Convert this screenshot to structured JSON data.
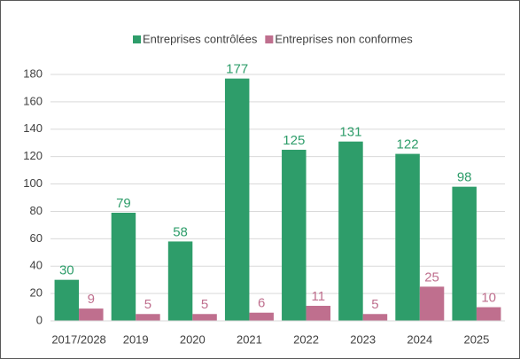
{
  "chart_data": {
    "type": "bar",
    "categories": [
      "2017/2028",
      "2019",
      "2020",
      "2021",
      "2022",
      "2023",
      "2024",
      "2025"
    ],
    "series": [
      {
        "name": "Entreprises contrôlées",
        "color": "#2e9d6a",
        "values": [
          30,
          79,
          58,
          177,
          125,
          131,
          122,
          98
        ]
      },
      {
        "name": "Entreprises non conformes",
        "color": "#bf6f8e",
        "values": [
          9,
          5,
          5,
          6,
          11,
          5,
          25,
          10
        ]
      }
    ],
    "ylim": [
      0,
      180
    ],
    "yticks": [
      0,
      20,
      40,
      60,
      80,
      100,
      120,
      140,
      160,
      180
    ],
    "grid": true,
    "legend": "top"
  }
}
